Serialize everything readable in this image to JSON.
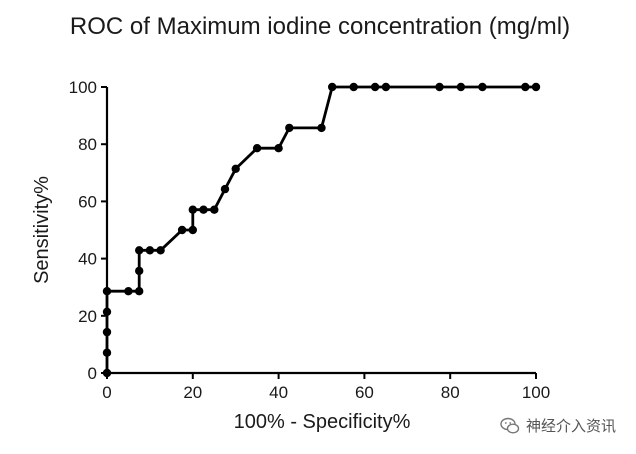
{
  "chart_data": {
    "type": "line",
    "title": "ROC of Maximum iodine concentration (mg/ml)",
    "xlabel": "100% - Specificity%",
    "ylabel": "Sensitivity%",
    "xlim": [
      0,
      100
    ],
    "ylim": [
      0,
      100
    ],
    "xticks": [
      0,
      20,
      40,
      60,
      80,
      100
    ],
    "yticks": [
      0,
      20,
      40,
      60,
      80,
      100
    ],
    "grid": false,
    "markers": "filled-circle",
    "line_color": "#000000",
    "series": [
      {
        "points": [
          [
            0,
            0
          ],
          [
            0,
            7.1
          ],
          [
            0,
            14.3
          ],
          [
            0,
            21.4
          ],
          [
            0,
            28.6
          ],
          [
            5,
            28.6
          ],
          [
            7.5,
            28.6
          ],
          [
            7.5,
            35.7
          ],
          [
            7.5,
            42.9
          ],
          [
            10,
            42.9
          ],
          [
            12.5,
            42.9
          ],
          [
            17.5,
            50
          ],
          [
            20,
            50
          ],
          [
            20,
            57.1
          ],
          [
            22.5,
            57.1
          ],
          [
            25,
            57.1
          ],
          [
            27.5,
            64.3
          ],
          [
            30,
            71.4
          ],
          [
            35,
            78.6
          ],
          [
            40,
            78.6
          ],
          [
            42.5,
            85.7
          ],
          [
            50,
            85.7
          ],
          [
            52.5,
            100
          ],
          [
            57.5,
            100
          ],
          [
            62.5,
            100
          ],
          [
            65,
            100
          ],
          [
            77.5,
            100
          ],
          [
            82.5,
            100
          ],
          [
            87.5,
            100
          ],
          [
            97.5,
            100
          ],
          [
            100,
            100
          ]
        ]
      }
    ]
  },
  "watermark": {
    "text": "神经介入资讯",
    "icon": "wechat-logo-icon"
  }
}
